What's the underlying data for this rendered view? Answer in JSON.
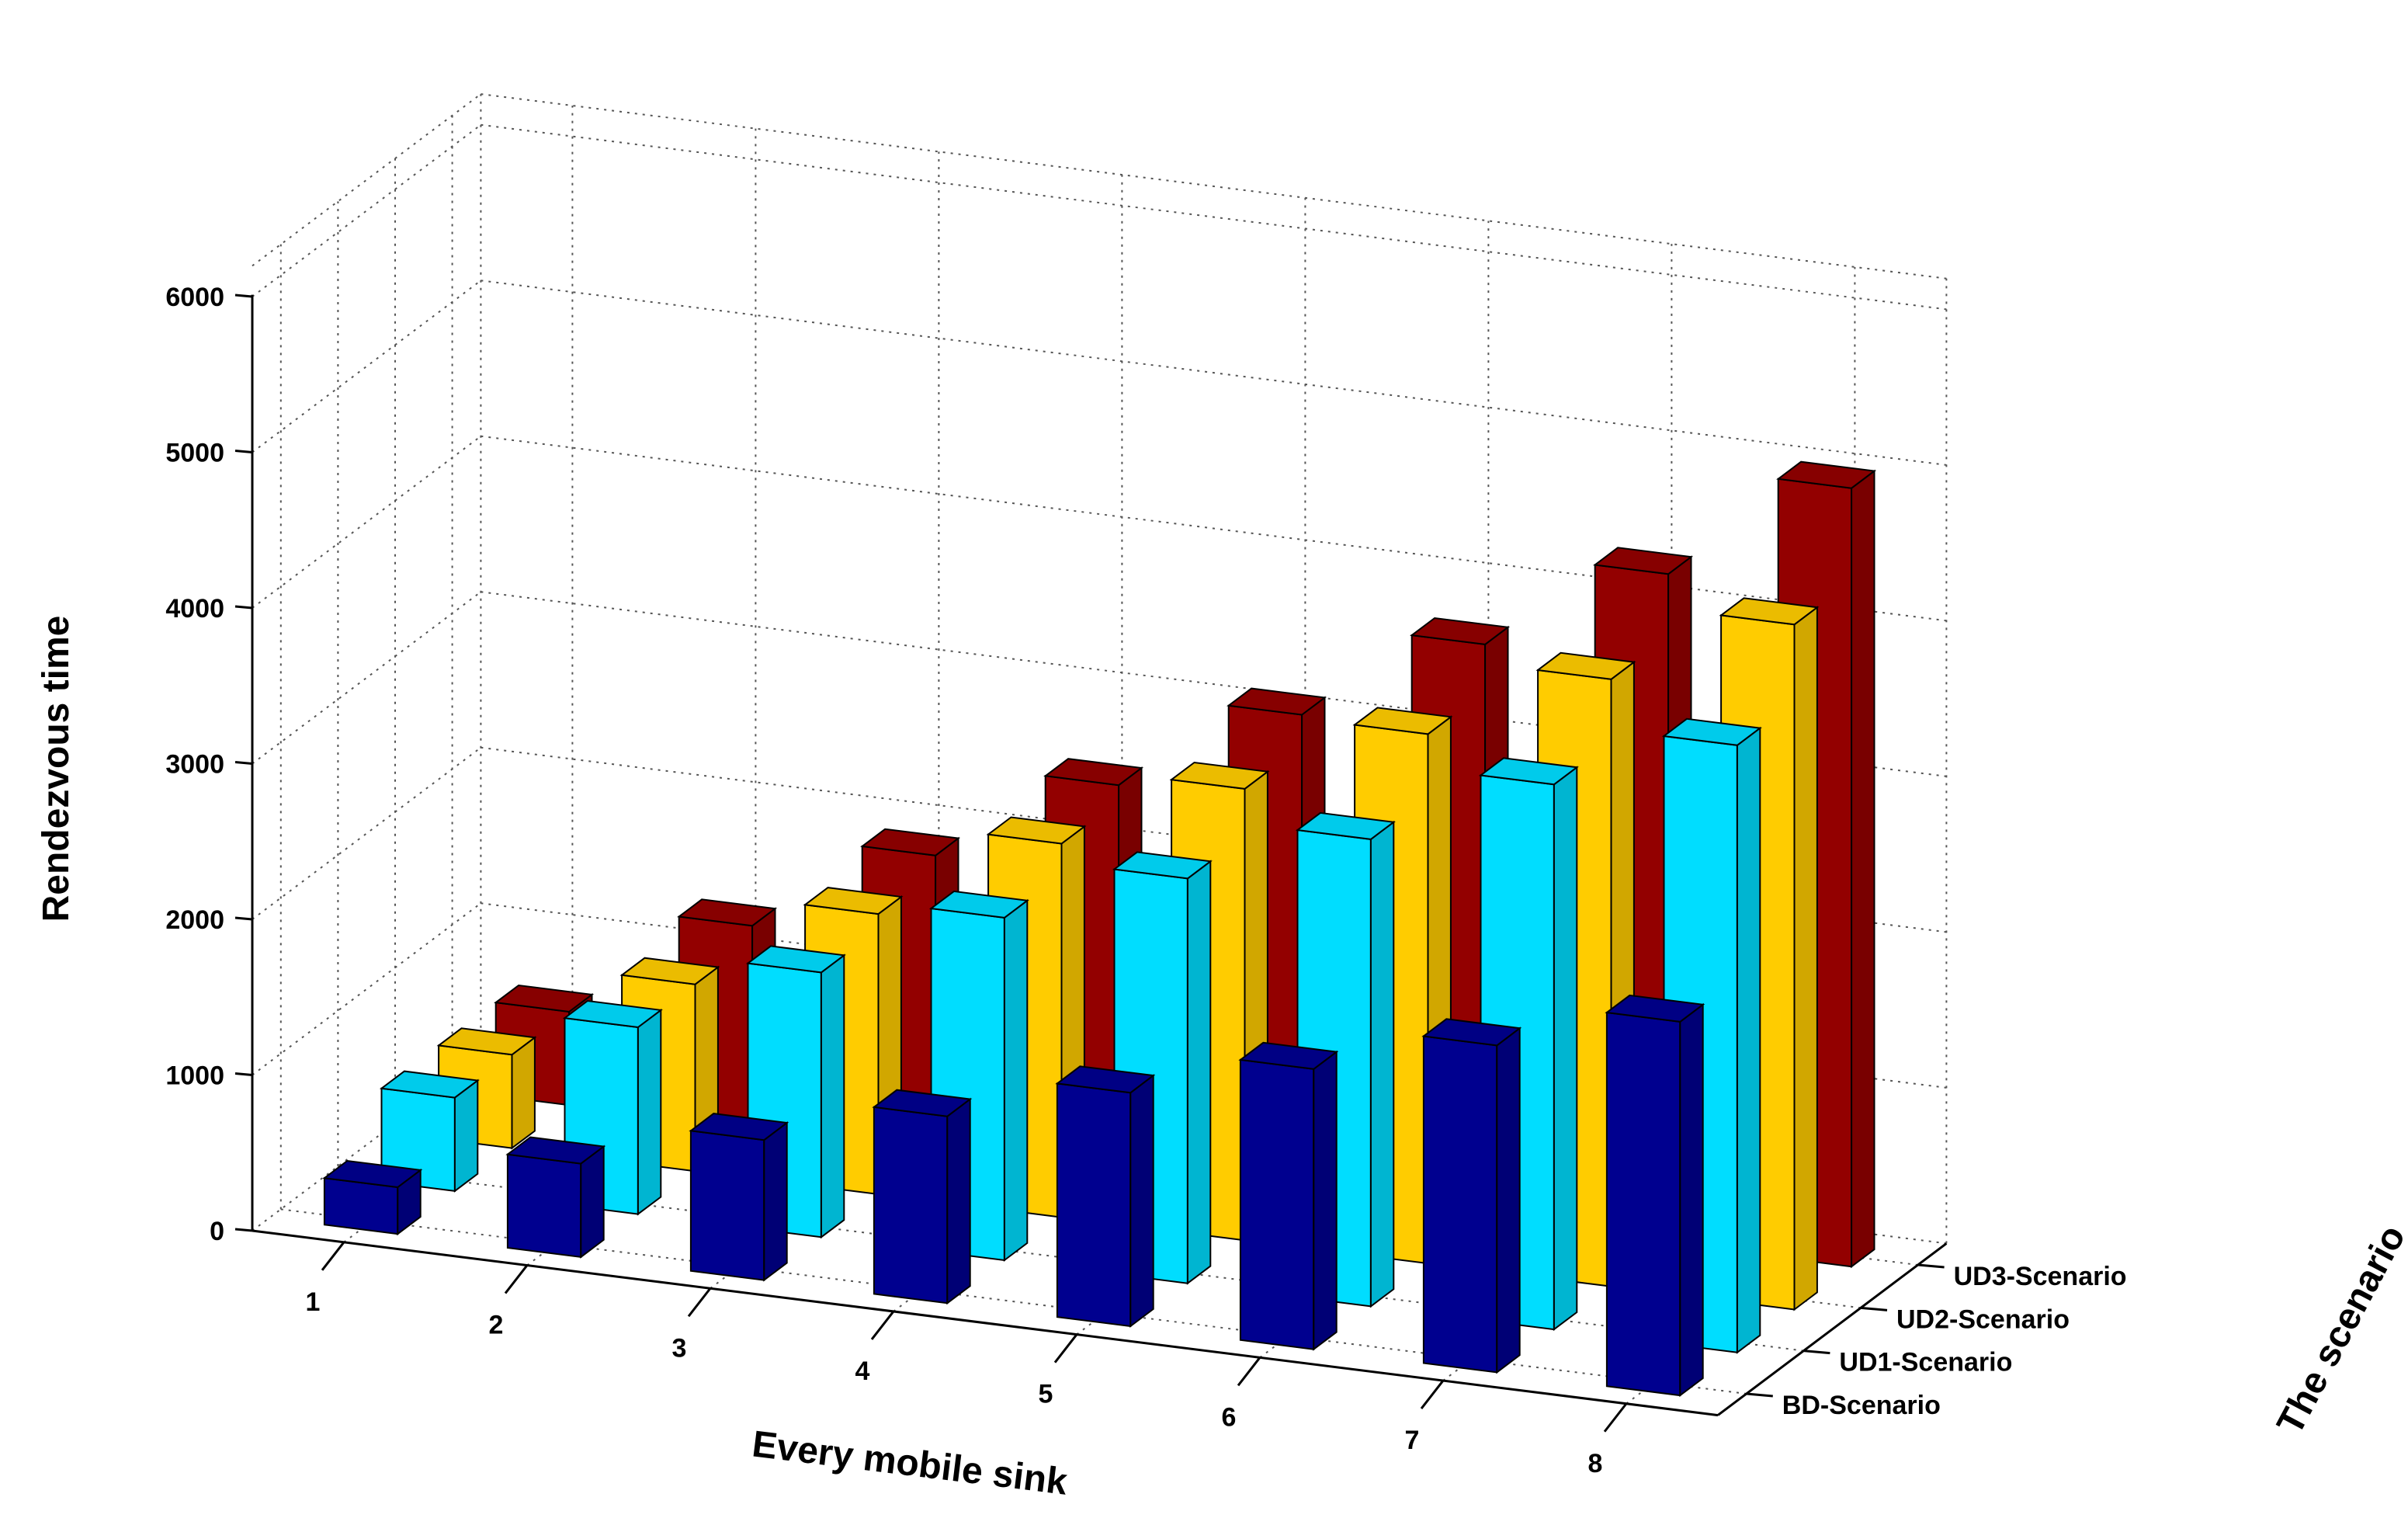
{
  "chart_data": {
    "type": "bar3d",
    "title": "",
    "xlabel": "Every mobile sink",
    "ylabel": "The scenario",
    "zlabel": "Rendezvous time",
    "categories": [
      "1",
      "2",
      "3",
      "4",
      "5",
      "6",
      "7",
      "8"
    ],
    "zlim": [
      0,
      6000
    ],
    "zticks": [
      "0",
      "1000",
      "2000",
      "3000",
      "4000",
      "5000",
      "6000"
    ],
    "grid": true,
    "series": [
      {
        "name": "BD-Scenario",
        "color": "#00008F",
        "values": [
          300,
          600,
          900,
          1200,
          1500,
          1800,
          2100,
          2400
        ]
      },
      {
        "name": "UD1-Scenario",
        "color": "#00DDFF",
        "values": [
          600,
          1200,
          1700,
          2200,
          2600,
          3000,
          3500,
          3900
        ]
      },
      {
        "name": "UD2-Scenario",
        "color": "#FFCC00",
        "values": [
          600,
          1200,
          1800,
          2400,
          2900,
          3400,
          3900,
          4400
        ]
      },
      {
        "name": "UD3-Scenario",
        "color": "#930000",
        "values": [
          600,
          1300,
          1900,
          2500,
          3100,
          3700,
          4300,
          5000
        ]
      }
    ]
  }
}
